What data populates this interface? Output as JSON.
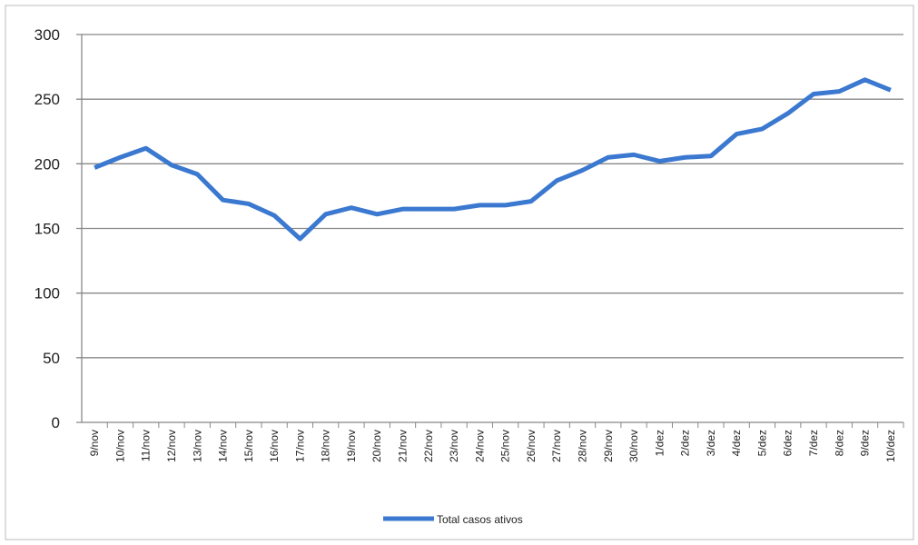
{
  "chart_data": {
    "type": "line",
    "categories": [
      "9/nov",
      "10/nov",
      "11/nov",
      "12/nov",
      "13/nov",
      "14/nov",
      "15/nov",
      "16/nov",
      "17/nov",
      "18/nov",
      "19/nov",
      "20/nov",
      "21/nov",
      "22/nov",
      "23/nov",
      "24/nov",
      "25/nov",
      "26/nov",
      "27/nov",
      "28/nov",
      "29/nov",
      "30/nov",
      "1/dez",
      "2/dez",
      "3/dez",
      "4/dez",
      "5/dez",
      "6/dez",
      "7/dez",
      "8/dez",
      "9/dez",
      "10/dez"
    ],
    "series": [
      {
        "name": "Total casos ativos",
        "color": "#3b78d0",
        "values": [
          197,
          205,
          212,
          199,
          192,
          172,
          169,
          160,
          142,
          161,
          166,
          161,
          165,
          165,
          165,
          168,
          168,
          171,
          187,
          195,
          205,
          207,
          202,
          205,
          206,
          223,
          227,
          239,
          254,
          256,
          265,
          257
        ]
      }
    ],
    "ylim": [
      0,
      300
    ],
    "yticks": [
      0,
      50,
      100,
      150,
      200,
      250,
      300
    ],
    "grid": true,
    "legend": "bottom"
  }
}
